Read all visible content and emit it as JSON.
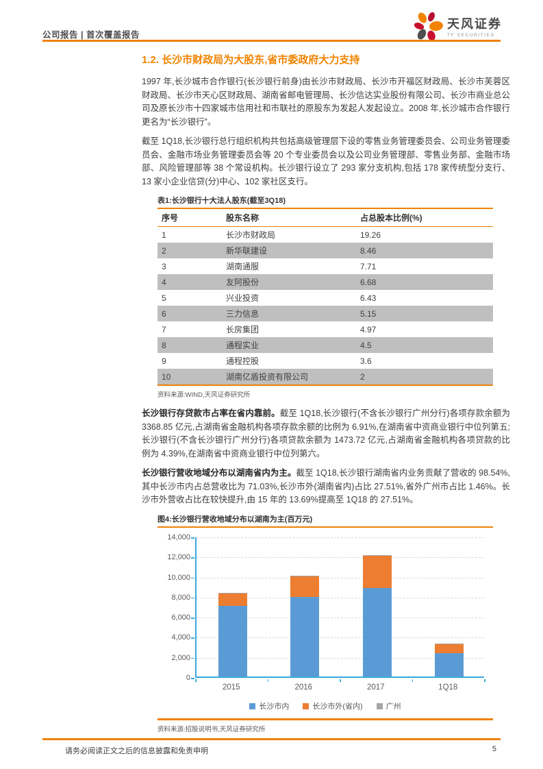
{
  "header": {
    "report_type": "公司报告 | 首次覆盖报告",
    "brand_name": "天风证券",
    "brand_sub": "TF SECURITIES"
  },
  "section": {
    "title": "1.2. 长沙市财政局为大股东,省市委政府大力支持"
  },
  "paragraphs": {
    "p1": "1997 年,长沙城市合作银行(长沙银行前身)由长沙市财政局、长沙市开福区财政局、长沙市芙蓉区财政局、长沙市天心区财政局、湖南省邮电管理局、长沙信达实业股份有限公司、长沙市商业总公司及原长沙市十四家城市信用社和市联社的原股东为发起人发起设立。2008 年,长沙城市合作银行更名为“长沙银行”。",
    "p2": "截至 1Q18,长沙银行总行组织机构共包括高级管理层下设的零售业务管理委员会、公司业务管理委员会、金融市场业务管理委员会等 20 个专业委员会以及公司业务管理部、零售业务部、金融市场部、风险管理部等 38 个常设机构。长沙银行设立了 293 家分支机构,包括 178 家传统型分支行、13 家小企业信贷(分)中心、102 家社区支行。",
    "p3_bold": "长沙银行存贷款市占率在省内靠前。",
    "p3_rest": "截至 1Q18,长沙银行(不含长沙银行广州分行)各项存款余额为 3368.85 亿元,占湖南省金融机构各项存款余额的比例为 6.91%,在湖南省中资商业银行中位列第五;长沙银行(不含长沙银行广州分行)各项贷款余额为 1473.72 亿元,占湖南省金融机构各项贷款的比例为 4.39%,在湖南省中资商业银行中位列第六。",
    "p4_bold": "长沙银行营收地域分布以湖南省内为主。",
    "p4_rest": "截至 1Q18,长沙银行湖南省内业务贡献了营收的 98.54%,其中长沙市内占总营收比为 71.03%,长沙市外(湖南省内)占比 27.51%,省外广州市占比 1.46%。长沙市外营收占比在较快提升,由 15 年的 13.69%提高至 1Q18 的 27.51%。"
  },
  "table": {
    "title": "表1:长沙银行十大法人股东(截至3Q18)",
    "headers": [
      "序号",
      "股东名称",
      "占总股本比例(%)"
    ],
    "rows": [
      [
        "1",
        "长沙市财政局",
        "19.26"
      ],
      [
        "2",
        "新华联建设",
        "8.46"
      ],
      [
        "3",
        "湖南通服",
        "7.71"
      ],
      [
        "4",
        "友阿股份",
        "6.68"
      ],
      [
        "5",
        "兴业投资",
        "6.43"
      ],
      [
        "6",
        "三力信息",
        "5.15"
      ],
      [
        "7",
        "长房集团",
        "4.97"
      ],
      [
        "8",
        "通程实业",
        "4.5"
      ],
      [
        "9",
        "通程控股",
        "3.6"
      ],
      [
        "10",
        "湖南亿盾投资有限公司",
        "2"
      ]
    ],
    "source": "资料来源:WIND,天风证券研究所"
  },
  "chart": {
    "title": "图4:长沙银行营收地域分布以湖南为主(百万元)",
    "source": "资料来源:招股说明书,天风证券研究所"
  },
  "chart_data": {
    "type": "bar",
    "stacked": true,
    "title": "图4:长沙银行营收地域分布以湖南为主(百万元)",
    "categories": [
      "2015",
      "2016",
      "2017",
      "1Q18"
    ],
    "series": [
      {
        "name": "长沙市内",
        "color": "#5B9BD5",
        "values": [
          7030,
          7900,
          8830,
          2330
        ]
      },
      {
        "name": "长沙市外(省内)",
        "color": "#ED7D31",
        "values": [
          1210,
          2050,
          3180,
          890
        ]
      },
      {
        "name": "广州",
        "color": "#A5A5A5",
        "values": [
          100,
          80,
          90,
          40
        ]
      }
    ],
    "ylabel": "",
    "xlabel": "",
    "ylim": [
      0,
      14000
    ],
    "ytick_step": 2000,
    "grid": "dashed-horizontal",
    "legend_position": "bottom",
    "axis_color": "#3AA8DD"
  },
  "footer": {
    "disclaimer": "请务必阅读正文之后的信息披露和免责申明",
    "page_number": "5"
  },
  "colors": {
    "accent_orange": "#EE8109",
    "heading_orange": "#F08300",
    "row_alt_gray": "#BFBFBF"
  }
}
